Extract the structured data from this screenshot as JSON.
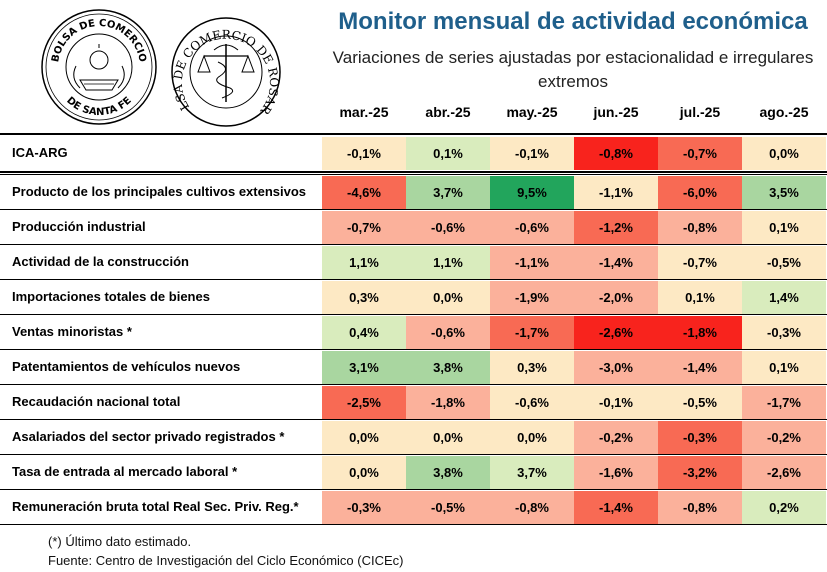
{
  "header": {
    "title": "Monitor mensual de actividad económica",
    "subtitle": "Variaciones de series ajustadas por estacionalidad e irregulares extremos"
  },
  "logos": {
    "santa_fe": {
      "top_text": "BOLSA DE COMERCIO",
      "bottom_text": "DE SANTA FE"
    },
    "rosario": {
      "text": "BOLSA DE COMERCIO DE ROSARIO"
    }
  },
  "colors": {
    "strong_red": "#f8231d",
    "red": "#f86a54",
    "light_red": "#fbb19b",
    "pale": "#fde9c4",
    "light_green": "#d9ecbd",
    "green": "#a9d6a0",
    "strong_green": "#22a55c",
    "title": "#1f5f8b"
  },
  "chart_data": {
    "type": "table",
    "columns": [
      "mar.-25",
      "abr.-25",
      "may.-25",
      "jun.-25",
      "jul.-25",
      "ago.-25"
    ],
    "rows": [
      {
        "label": "ICA-ARG",
        "values": [
          "-0,1%",
          "0,1%",
          "-0,1%",
          "-0,8%",
          "-0,7%",
          "0,0%"
        ],
        "colors": [
          "pale",
          "light_green",
          "pale",
          "strong_red",
          "red",
          "pale"
        ]
      },
      {
        "label": "Producto de los principales cultivos extensivos",
        "values": [
          "-4,6%",
          "3,7%",
          "9,5%",
          "-1,1%",
          "-6,0%",
          "3,5%"
        ],
        "colors": [
          "red",
          "green",
          "strong_green",
          "pale",
          "red",
          "green"
        ]
      },
      {
        "label": "Producción industrial",
        "values": [
          "-0,7%",
          "-0,6%",
          "-0,6%",
          "-1,2%",
          "-0,8%",
          "0,1%"
        ],
        "colors": [
          "light_red",
          "light_red",
          "light_red",
          "red",
          "light_red",
          "pale"
        ]
      },
      {
        "label": "Actividad de la construcción",
        "values": [
          "1,1%",
          "1,1%",
          "-1,1%",
          "-1,4%",
          "-0,7%",
          "-0,5%"
        ],
        "colors": [
          "light_green",
          "light_green",
          "light_red",
          "light_red",
          "pale",
          "pale"
        ]
      },
      {
        "label": "Importaciones totales de bienes",
        "values": [
          "0,3%",
          "0,0%",
          "-1,9%",
          "-2,0%",
          "0,1%",
          "1,4%"
        ],
        "colors": [
          "pale",
          "pale",
          "light_red",
          "light_red",
          "pale",
          "light_green"
        ]
      },
      {
        "label": "Ventas minoristas *",
        "values": [
          "0,4%",
          "-0,6%",
          "-1,7%",
          "-2,6%",
          "-1,8%",
          "-0,3%"
        ],
        "colors": [
          "light_green",
          "light_red",
          "red",
          "strong_red",
          "strong_red",
          "pale"
        ]
      },
      {
        "label": "Patentamientos de vehículos nuevos",
        "values": [
          "3,1%",
          "3,8%",
          "0,3%",
          "-3,0%",
          "-1,4%",
          "0,1%"
        ],
        "colors": [
          "green",
          "green",
          "pale",
          "light_red",
          "light_red",
          "pale"
        ]
      },
      {
        "label": "Recaudación nacional total",
        "values": [
          "-2,5%",
          "-1,8%",
          "-0,6%",
          "-0,1%",
          "-0,5%",
          "-1,7%"
        ],
        "colors": [
          "red",
          "light_red",
          "pale",
          "pale",
          "pale",
          "light_red"
        ]
      },
      {
        "label": "Asalariados del sector privado registrados *",
        "values": [
          "0,0%",
          "0,0%",
          "0,0%",
          "-0,2%",
          "-0,3%",
          "-0,2%"
        ],
        "colors": [
          "pale",
          "pale",
          "pale",
          "light_red",
          "red",
          "light_red"
        ]
      },
      {
        "label": "Tasa de entrada al mercado laboral *",
        "values": [
          "0,0%",
          "3,8%",
          "3,7%",
          "-1,6%",
          "-3,2%",
          "-2,6%"
        ],
        "colors": [
          "pale",
          "green",
          "light_green",
          "light_red",
          "red",
          "light_red"
        ]
      },
      {
        "label": "Remuneración bruta total Real Sec. Priv. Reg.*",
        "values": [
          "-0,3%",
          "-0,5%",
          "-0,8%",
          "-1,4%",
          "-0,8%",
          "0,2%"
        ],
        "colors": [
          "light_red",
          "light_red",
          "light_red",
          "red",
          "light_red",
          "light_green"
        ]
      }
    ]
  },
  "footer": {
    "note": "(*) Último dato estimado.",
    "source": "Fuente: Centro de Investigación del Ciclo Económico (CICEc)"
  }
}
